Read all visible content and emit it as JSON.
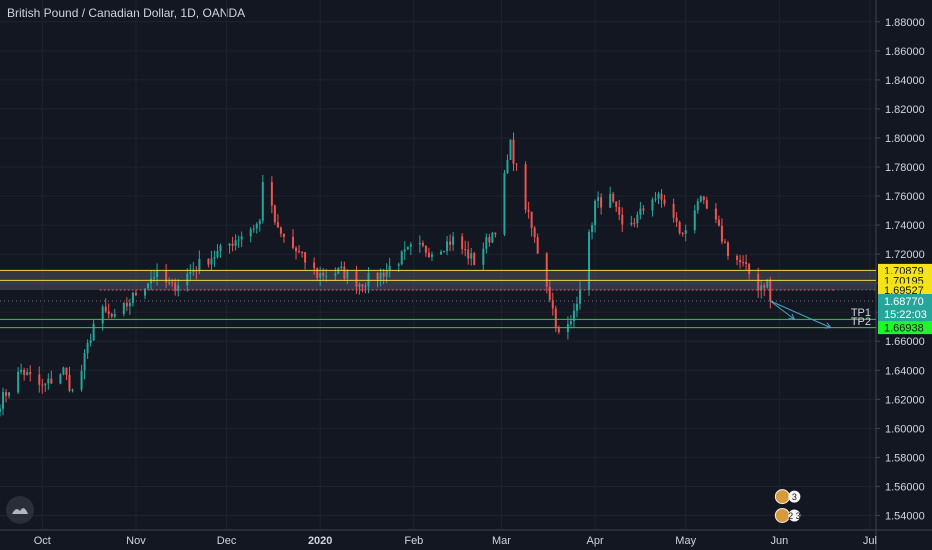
{
  "header": {
    "title": "British Pound / Canadian Dollar, 1D, OANDA"
  },
  "colors": {
    "background": "#131722",
    "grid": "#1e222d",
    "up": "#26a69a",
    "down": "#ef5350",
    "yellow_line": "#f5d547",
    "pink_line": "#e0587a",
    "green_line": "#2ecc40",
    "target_arrow": "#4ba3c7",
    "axis_text": "#d1d4dc"
  },
  "chart_data": {
    "type": "candlestick",
    "ylim": [
      1.53,
      1.895
    ],
    "xlim": [
      "2019-09-17",
      "2020-07-03"
    ],
    "y_ticks": [
      "1.54000",
      "1.56000",
      "1.58000",
      "1.60000",
      "1.62000",
      "1.64000",
      "1.66000",
      "1.68000",
      "1.70000",
      "1.72000",
      "1.74000",
      "1.76000",
      "1.78000",
      "1.80000",
      "1.82000",
      "1.84000",
      "1.86000",
      "1.88000"
    ],
    "y_tick_values": [
      1.54,
      1.56,
      1.58,
      1.6,
      1.62,
      1.64,
      1.66,
      1.68,
      1.7,
      1.72,
      1.74,
      1.76,
      1.78,
      1.8,
      1.82,
      1.84,
      1.86,
      1.88
    ],
    "x_ticks": [
      {
        "label": "Oct",
        "date": "2019-10-01",
        "bold": false
      },
      {
        "label": "Nov",
        "date": "2019-11-01",
        "bold": false
      },
      {
        "label": "Dec",
        "date": "2019-12-01",
        "bold": false
      },
      {
        "label": "2020",
        "date": "2020-01-01",
        "bold": true
      },
      {
        "label": "Feb",
        "date": "2020-02-01",
        "bold": false
      },
      {
        "label": "Mar",
        "date": "2020-03-01",
        "bold": false
      },
      {
        "label": "Apr",
        "date": "2020-04-01",
        "bold": false
      },
      {
        "label": "May",
        "date": "2020-05-01",
        "bold": false
      },
      {
        "label": "Jun",
        "date": "2020-06-01",
        "bold": false
      },
      {
        "label": "Jul",
        "date": "2020-07-01",
        "bold": false
      }
    ],
    "anchors": [
      [
        "2019-09-17",
        1.618
      ],
      [
        "2019-09-24",
        1.64
      ],
      [
        "2019-10-01",
        1.628
      ],
      [
        "2019-10-08",
        1.64
      ],
      [
        "2019-10-11",
        1.625
      ],
      [
        "2019-10-14",
        1.64
      ],
      [
        "2019-10-18",
        1.672
      ],
      [
        "2019-10-21",
        1.68
      ],
      [
        "2019-10-25",
        1.675
      ],
      [
        "2019-11-01",
        1.693
      ],
      [
        "2019-11-07",
        1.706
      ],
      [
        "2019-11-13",
        1.697
      ],
      [
        "2019-11-22",
        1.713
      ],
      [
        "2019-11-29",
        1.722
      ],
      [
        "2019-12-05",
        1.732
      ],
      [
        "2019-12-12",
        1.742
      ],
      [
        "2019-12-13",
        1.772
      ],
      [
        "2019-12-18",
        1.735
      ],
      [
        "2019-12-24",
        1.722
      ],
      [
        "2019-12-31",
        1.706
      ],
      [
        "2020-01-08",
        1.708
      ],
      [
        "2020-01-14",
        1.7
      ],
      [
        "2020-01-21",
        1.706
      ],
      [
        "2020-01-28",
        1.718
      ],
      [
        "2020-02-01",
        1.725
      ],
      [
        "2020-02-07",
        1.722
      ],
      [
        "2020-02-14",
        1.73
      ],
      [
        "2020-02-21",
        1.715
      ],
      [
        "2020-02-28",
        1.738
      ],
      [
        "2020-03-04",
        1.795
      ],
      [
        "2020-03-10",
        1.745
      ],
      [
        "2020-03-16",
        1.7
      ],
      [
        "2020-03-20",
        1.664
      ],
      [
        "2020-03-24",
        1.672
      ],
      [
        "2020-03-28",
        1.708
      ],
      [
        "2020-04-01",
        1.755
      ],
      [
        "2020-04-06",
        1.758
      ],
      [
        "2020-04-10",
        1.738
      ],
      [
        "2020-04-15",
        1.745
      ],
      [
        "2020-04-20",
        1.76
      ],
      [
        "2020-04-24",
        1.756
      ],
      [
        "2020-04-30",
        1.732
      ],
      [
        "2020-05-05",
        1.758
      ],
      [
        "2020-05-10",
        1.745
      ],
      [
        "2020-05-15",
        1.722
      ],
      [
        "2020-05-20",
        1.712
      ],
      [
        "2020-05-25",
        1.698
      ],
      [
        "2020-05-28",
        1.701
      ],
      [
        "2020-05-29",
        1.6877
      ]
    ],
    "horizontal_levels": [
      {
        "price": 1.70879,
        "label": "1.70879",
        "style": "yellow"
      },
      {
        "price": 1.70195,
        "label": "1.70195",
        "style": "yellow"
      },
      {
        "price": 1.69527,
        "label": "1.69527",
        "style": "pink-dotted"
      },
      {
        "price": 1.6877,
        "label": "1.68770",
        "style": "current"
      },
      {
        "price": 1.67504,
        "label": "1.67504",
        "style": "green"
      },
      {
        "price": 1.66938,
        "label": "1.66938",
        "style": "green"
      }
    ],
    "targets": [
      {
        "name": "TP1",
        "price": 1.67504,
        "end_date": "2020-06-06"
      },
      {
        "name": "TP2",
        "price": 1.66938,
        "end_date": "2020-06-18"
      }
    ],
    "countdown": "15:22:03",
    "resistance_zone": [
      1.69527,
      1.70879
    ],
    "zone_start_date": "2019-09-17",
    "pink_start_date": "2019-10-20",
    "pink_end_date": "2020-06-19",
    "level_start_date": "2019-09-17",
    "event_badges": [
      {
        "date": "2020-06-02",
        "price": 1.553,
        "text": "3"
      },
      {
        "date": "2020-06-02",
        "price": 1.54,
        "text": "2 3"
      }
    ],
    "grid": true
  }
}
